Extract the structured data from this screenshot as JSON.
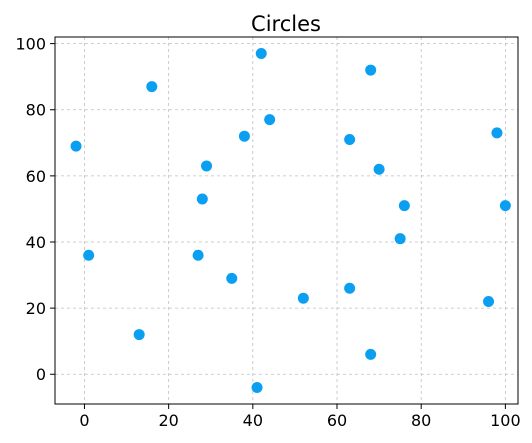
{
  "chart_data": {
    "type": "scatter",
    "title": "Circles",
    "xlabel": "",
    "ylabel": "",
    "xlim": [
      -7,
      103
    ],
    "ylim": [
      -9,
      102
    ],
    "xticks": [
      0,
      20,
      40,
      60,
      80,
      100
    ],
    "yticks": [
      0,
      20,
      40,
      60,
      80,
      100
    ],
    "xtick_labels": [
      "0",
      "20",
      "40",
      "60",
      "80",
      "100"
    ],
    "ytick_labels": [
      "0",
      "20",
      "40",
      "60",
      "80",
      "100"
    ],
    "grid": true,
    "marker": "circle",
    "color": "#0a9ff0",
    "points": [
      {
        "x": 42,
        "y": 97
      },
      {
        "x": 68,
        "y": 92
      },
      {
        "x": 16,
        "y": 87
      },
      {
        "x": 44,
        "y": 77
      },
      {
        "x": 98,
        "y": 73
      },
      {
        "x": 38,
        "y": 72
      },
      {
        "x": 63,
        "y": 71
      },
      {
        "x": -2,
        "y": 69
      },
      {
        "x": 29,
        "y": 63
      },
      {
        "x": 70,
        "y": 62
      },
      {
        "x": 28,
        "y": 53
      },
      {
        "x": 76,
        "y": 51
      },
      {
        "x": 100,
        "y": 51
      },
      {
        "x": 75,
        "y": 41
      },
      {
        "x": 1,
        "y": 36
      },
      {
        "x": 27,
        "y": 36
      },
      {
        "x": 35,
        "y": 29
      },
      {
        "x": 63,
        "y": 26
      },
      {
        "x": 52,
        "y": 23
      },
      {
        "x": 96,
        "y": 22
      },
      {
        "x": 13,
        "y": 12
      },
      {
        "x": 68,
        "y": 6
      },
      {
        "x": 41,
        "y": -4
      }
    ]
  }
}
